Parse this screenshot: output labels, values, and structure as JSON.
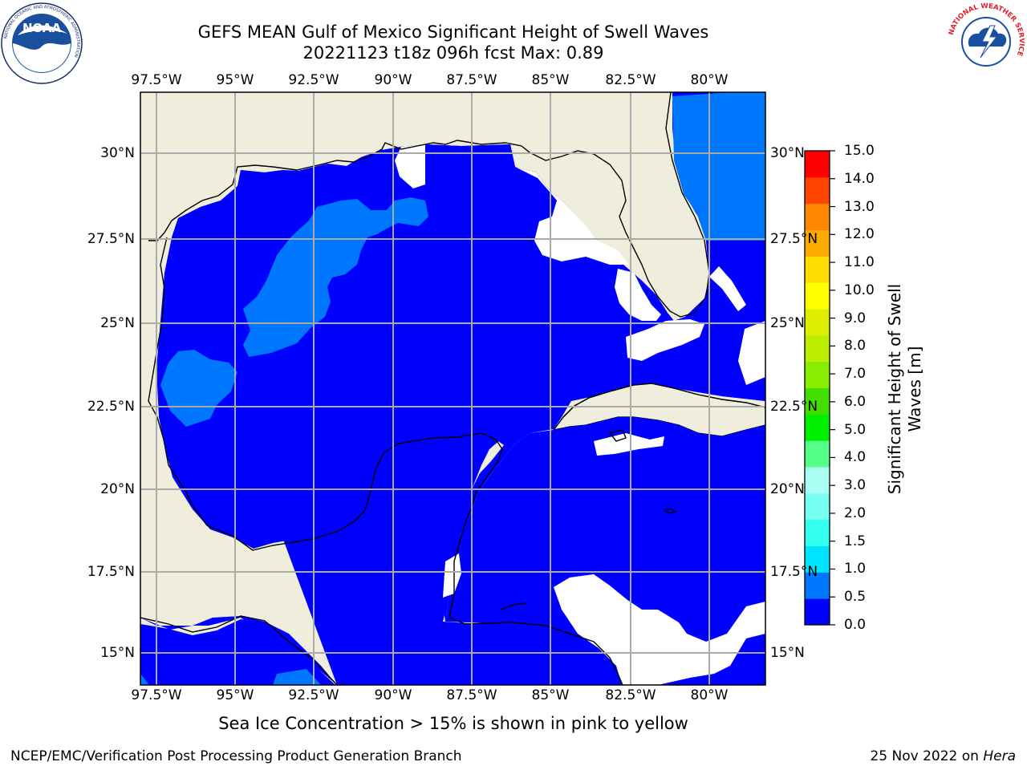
{
  "header": {
    "title_line1": "GEFS MEAN Gulf of Mexico Significant Height of Swell Waves",
    "title_line2": "20221123 t18z 096h fcst   Max: 0.89"
  },
  "map": {
    "lon_labels": [
      "97.5°W",
      "95°W",
      "92.5°W",
      "90°W",
      "87.5°W",
      "85°W",
      "82.5°W",
      "80°W"
    ],
    "lat_labels": [
      "30°N",
      "27.5°N",
      "25°N",
      "22.5°N",
      "20°N",
      "17.5°N",
      "15°N"
    ],
    "lon_range": [
      -98.0,
      -78.0
    ],
    "lat_range": [
      14.0,
      32.0
    ],
    "land_color": "#efeedc",
    "ocean_class_0_color": "#0000ff",
    "ocean_class_1_color": "#0077ff",
    "nodata_color": "#ffffff"
  },
  "colorbar": {
    "label_line1": "Significant Height of Swell",
    "label_line2": "Waves [m]",
    "ticks": [
      "0.0",
      "0.5",
      "1.0",
      "1.5",
      "2.0",
      "3.0",
      "4.0",
      "5.0",
      "6.0",
      "7.0",
      "8.0",
      "9.0",
      "10.0",
      "11.0",
      "12.0",
      "13.0",
      "14.0",
      "15.0"
    ],
    "colors": [
      "#0000ff",
      "#0077ff",
      "#00e5ff",
      "#33ffee",
      "#77fff2",
      "#aafff4",
      "#55ff88",
      "#00ee00",
      "#44dd00",
      "#88ee00",
      "#bbee00",
      "#ddee00",
      "#ffff00",
      "#ffdd00",
      "#ffaa00",
      "#ff8800",
      "#ff4400",
      "#ff0000"
    ]
  },
  "footer": {
    "sea_ice_note": "Sea Ice Concentration > 15% is shown in pink to yellow",
    "credit": "NCEP/EMC/Verification Post Processing Product Generation Branch",
    "date": "25 Nov 2022 on",
    "machine": "Hera"
  },
  "logos": {
    "noaa": "NOAA",
    "nws_ring": "NATIONAL WEATHER SERVICE",
    "noaa_ring": "NATIONAL OCEANIC AND ATMOSPHERIC ADMINISTRATION",
    "noaa_ring_bottom": "U.S. DEPARTMENT OF COMMERCE"
  }
}
